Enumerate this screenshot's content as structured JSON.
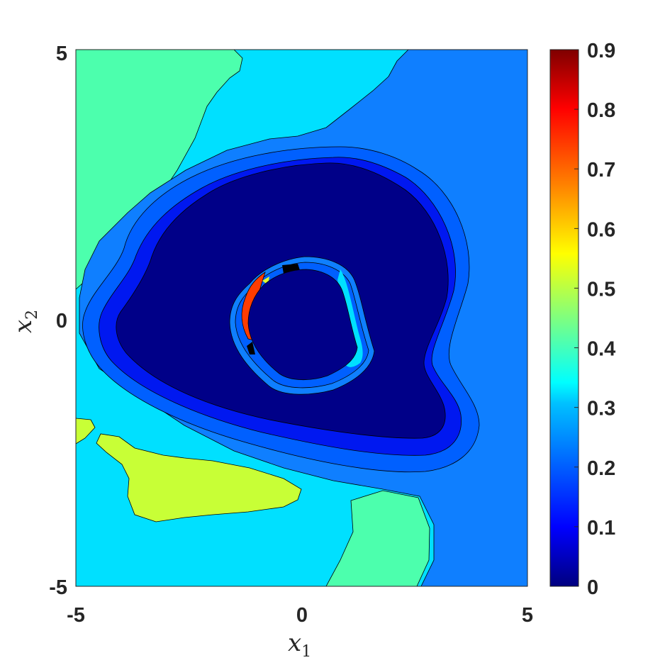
{
  "chart_data": {
    "type": "contour",
    "title": "",
    "xlabel": "x",
    "xlabel_sub": "1",
    "ylabel": "x",
    "ylabel_sub": "2",
    "xlim": [
      -5,
      5
    ],
    "ylim": [
      -5,
      5
    ],
    "x_ticks": [
      "-5",
      "0",
      "5"
    ],
    "y_ticks": [
      "5",
      "0",
      "-5"
    ],
    "colorbar": {
      "colormap": "jet",
      "range": [
        0,
        0.9
      ],
      "ticks": [
        "0.9",
        "0.8",
        "0.7",
        "0.6",
        "0.5",
        "0.4",
        "0.3",
        "0.2",
        "0.1",
        "0"
      ]
    },
    "regions": [
      {
        "name": "background-left",
        "level": 0.42,
        "color": "#4cffad"
      },
      {
        "name": "band-cyan",
        "level": 0.32,
        "color": "#00e0ff"
      },
      {
        "name": "band-right",
        "level": 0.22,
        "color": "#0f7fff"
      },
      {
        "name": "band-blue",
        "level": 0.15,
        "color": "#0060ff"
      },
      {
        "name": "ring-outer",
        "level": 0.08,
        "color": "#0018f0"
      },
      {
        "name": "core",
        "level": 0.02,
        "color": "#000088"
      },
      {
        "name": "lime-patch",
        "level": 0.52,
        "color": "#c8ff36"
      }
    ]
  }
}
